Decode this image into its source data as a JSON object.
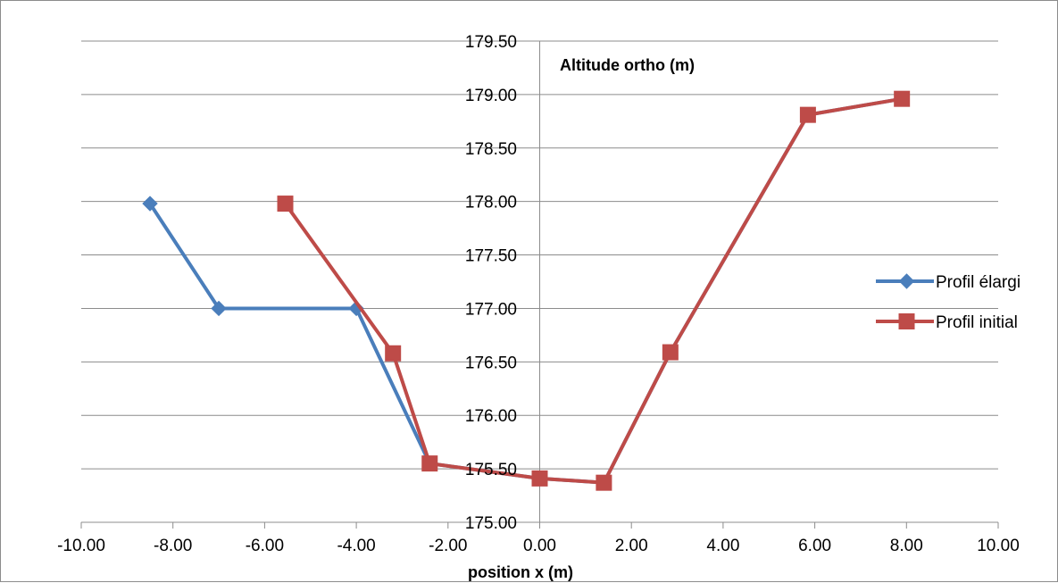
{
  "chart_data": {
    "type": "line",
    "xlabel": "position x (m)",
    "ylabel": "Altitude ortho (m)",
    "xlim": [
      -10,
      10
    ],
    "ylim": [
      175,
      179.5
    ],
    "x_ticks": [
      -10,
      -8,
      -6,
      -4,
      -2,
      0,
      2,
      4,
      6,
      8,
      10
    ],
    "y_ticks": [
      175,
      175.5,
      176,
      176.5,
      177,
      177.5,
      178,
      178.5,
      179,
      179.5
    ],
    "x_tick_labels": [
      "-10.00",
      "-8.00",
      "-6.00",
      "-4.00",
      "-2.00",
      "0.00",
      "2.00",
      "4.00",
      "6.00",
      "8.00",
      "10.00"
    ],
    "y_tick_labels": [
      "175.00",
      "175.50",
      "176.00",
      "176.50",
      "177.00",
      "177.50",
      "178.00",
      "178.50",
      "179.00",
      "179.50"
    ],
    "grid": "horizontal",
    "legend_position": "right",
    "series": [
      {
        "name": "Profil élargi",
        "color": "#4a7ebb",
        "marker": "diamond",
        "points": [
          [
            -8.5,
            177.98
          ],
          [
            -7.0,
            177.0
          ],
          [
            -4.0,
            177.0
          ],
          [
            -2.4,
            175.55
          ],
          [
            0.0,
            175.41
          ],
          [
            1.4,
            175.37
          ],
          [
            2.85,
            176.59
          ],
          [
            5.85,
            178.81
          ],
          [
            7.9,
            178.96
          ]
        ]
      },
      {
        "name": "Profil initial",
        "color": "#be4b48",
        "marker": "square",
        "points": [
          [
            -5.55,
            177.98
          ],
          [
            -3.2,
            176.58
          ],
          [
            -2.4,
            175.55
          ],
          [
            0.0,
            175.41
          ],
          [
            1.4,
            175.37
          ],
          [
            2.85,
            176.59
          ],
          [
            5.85,
            178.81
          ],
          [
            7.9,
            178.96
          ]
        ]
      }
    ]
  }
}
